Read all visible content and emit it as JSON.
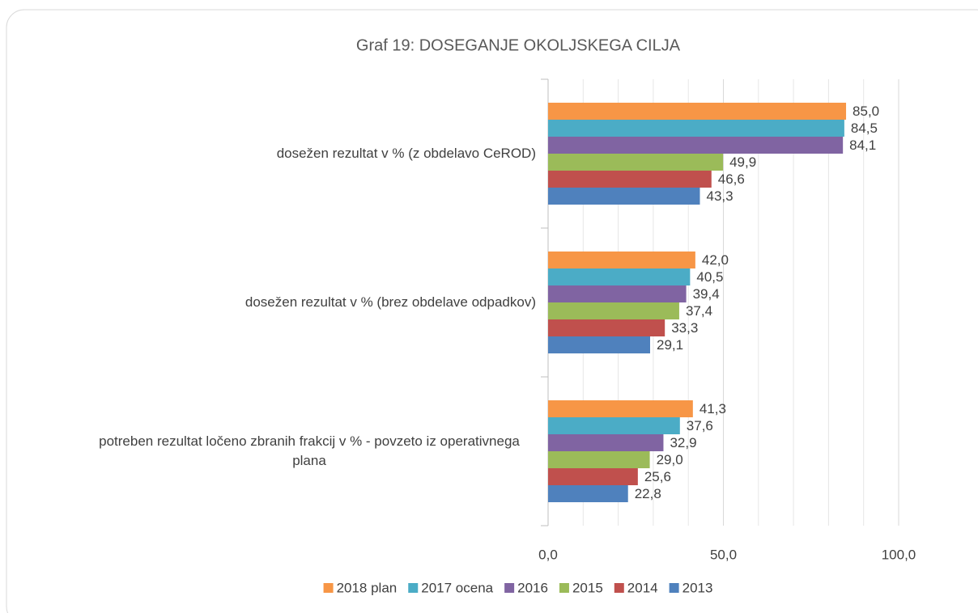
{
  "chart_data": {
    "type": "hbar",
    "title": "Graf 19: DOSEGANJE OKOLJSKEGA CILJA",
    "categories": [
      "dosežen rezultat v % (z obdelavo CeROD)",
      "dosežen rezultat v % (brez obdelave odpadkov)",
      "potreben rezultat ločeno zbranih frakcij v %  - povzeto iz operativnega plana"
    ],
    "series": [
      {
        "name": "2018 plan",
        "color": "#f79646",
        "values": [
          85.0,
          42.0,
          41.3
        ],
        "value_labels": [
          "85,0",
          "42,0",
          "41,3"
        ]
      },
      {
        "name": "2017 ocena",
        "color": "#4bacc6",
        "values": [
          84.5,
          40.5,
          37.6
        ],
        "value_labels": [
          "84,5",
          "40,5",
          "37,6"
        ]
      },
      {
        "name": "2016",
        "color": "#8064a2",
        "values": [
          84.1,
          39.4,
          32.9
        ],
        "value_labels": [
          "84,1",
          "39,4",
          "32,9"
        ]
      },
      {
        "name": "2015",
        "color": "#9bbb59",
        "values": [
          49.9,
          37.4,
          29.0
        ],
        "value_labels": [
          "49,9",
          "37,4",
          "29,0"
        ]
      },
      {
        "name": "2014",
        "color": "#c0504d",
        "values": [
          46.6,
          33.3,
          25.6
        ],
        "value_labels": [
          "46,6",
          "33,3",
          "25,6"
        ]
      },
      {
        "name": "2013",
        "color": "#4f81bd",
        "values": [
          43.3,
          29.1,
          22.8
        ],
        "value_labels": [
          "43,3",
          "29,1",
          "22,8"
        ]
      }
    ],
    "xlim": [
      0,
      100
    ],
    "xticks": [
      {
        "value": 0,
        "label": "0,0"
      },
      {
        "value": 50,
        "label": "50,0"
      },
      {
        "value": 100,
        "label": "100,0"
      }
    ],
    "minor_xticks": [
      10,
      20,
      30,
      40,
      60,
      70,
      80,
      90
    ],
    "grid": true,
    "legend": "bottom"
  }
}
